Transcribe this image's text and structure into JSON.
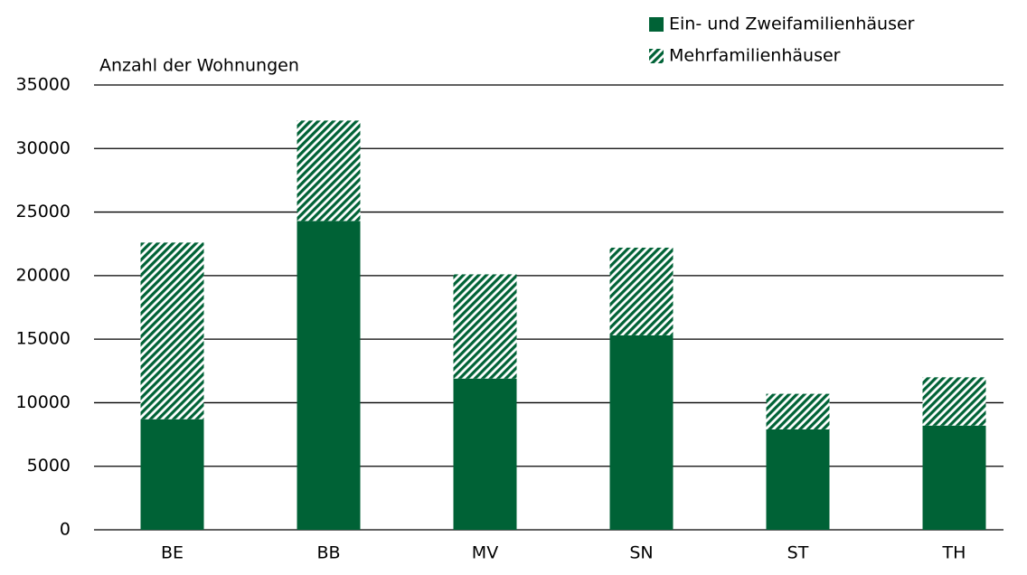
{
  "chart_data": {
    "type": "stacked_bar",
    "y_label": "Anzahl der Wohnungen",
    "categories": [
      "BE",
      "BB",
      "MV",
      "SN",
      "ST",
      "TH"
    ],
    "series": [
      {
        "name": "Ein- und Zweifamilienhäuser",
        "color": "#006236",
        "hatch": false,
        "values": [
          8700,
          24300,
          11900,
          15300,
          7900,
          8200
        ]
      },
      {
        "name": "Mehrfamilienhäuser",
        "color": "#006236",
        "hatch": true,
        "values": [
          13900,
          7900,
          8200,
          6900,
          2800,
          3800
        ]
      }
    ],
    "ylim": [
      0,
      35000
    ],
    "yticks": [
      0,
      5000,
      10000,
      15000,
      20000,
      25000,
      30000,
      35000
    ],
    "grid": true,
    "legend": "top-right"
  }
}
